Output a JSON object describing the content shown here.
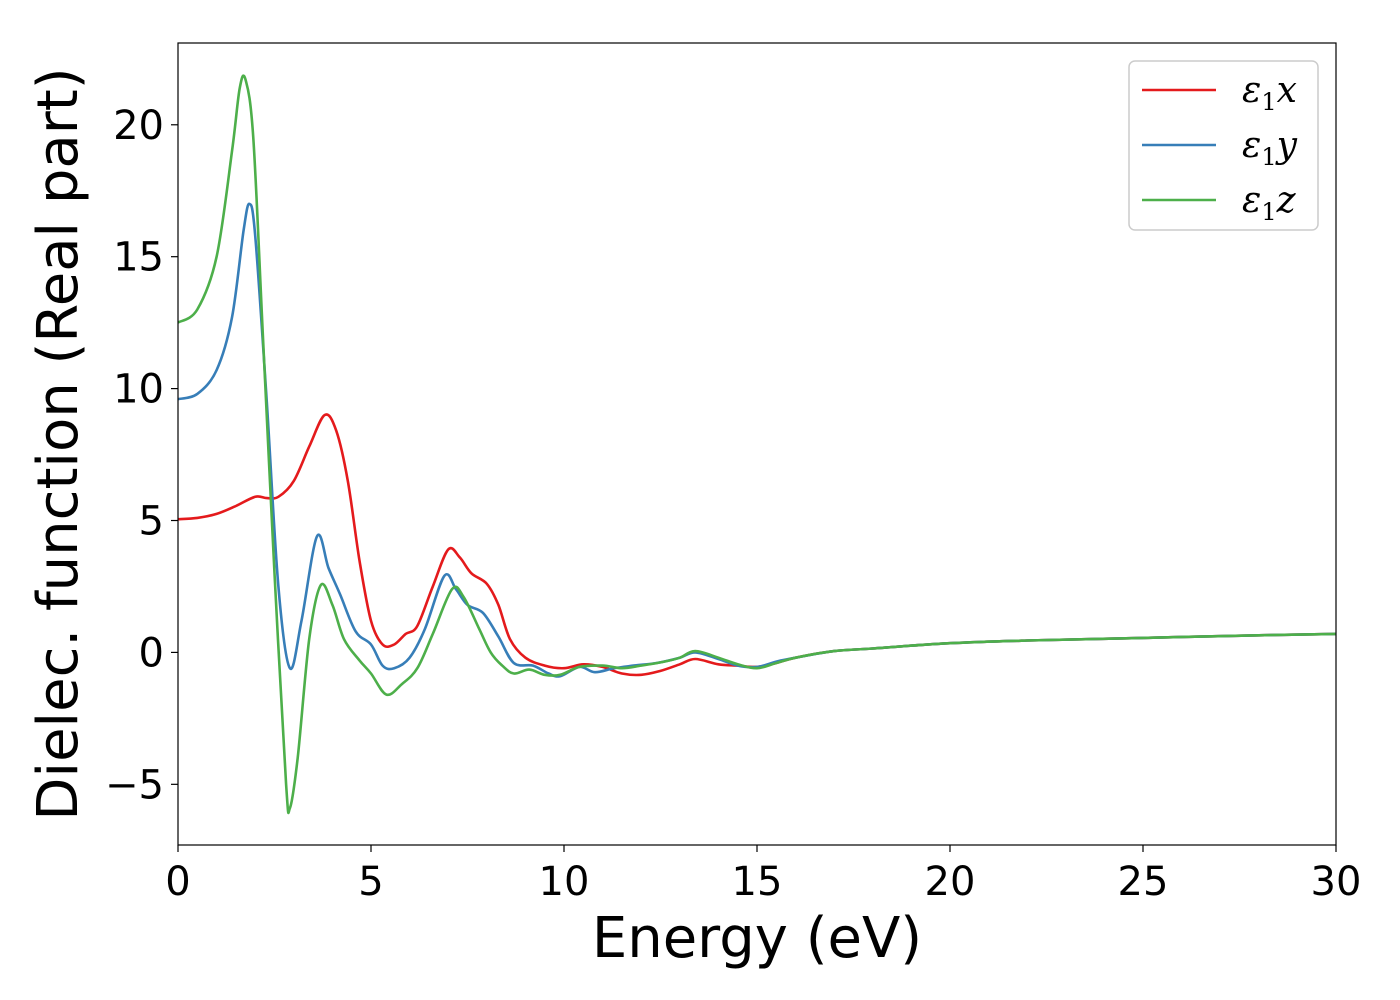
{
  "chart_data": {
    "type": "line",
    "title": "",
    "xlabel": "Energy (eV)",
    "ylabel": "Dielec. function (Real part)",
    "xlim": [
      0,
      30
    ],
    "ylim": [
      -7.3,
      23.1
    ],
    "xticks": [
      0,
      5,
      10,
      15,
      20,
      25,
      30
    ],
    "yticks": [
      -5,
      0,
      5,
      10,
      15,
      20
    ],
    "xtick_labels": [
      "0",
      "5",
      "10",
      "15",
      "20",
      "25",
      "30"
    ],
    "ytick_labels": [
      "−5",
      "0",
      "5",
      "10",
      "15",
      "20"
    ],
    "grid": false,
    "legend_position": "top-right",
    "series": [
      {
        "name": "ε₁x",
        "legend_base": "ε",
        "legend_sub": "1",
        "legend_var": "x",
        "color": "#e41a1c",
        "points": [
          [
            0,
            5.05
          ],
          [
            0.5,
            5.1
          ],
          [
            1.0,
            5.25
          ],
          [
            1.5,
            5.55
          ],
          [
            2.0,
            5.9
          ],
          [
            2.3,
            5.85
          ],
          [
            2.6,
            5.9
          ],
          [
            3.0,
            6.5
          ],
          [
            3.4,
            7.8
          ],
          [
            3.8,
            9.0
          ],
          [
            4.1,
            8.4
          ],
          [
            4.4,
            6.5
          ],
          [
            4.7,
            3.5
          ],
          [
            5.0,
            1.2
          ],
          [
            5.3,
            0.3
          ],
          [
            5.6,
            0.3
          ],
          [
            5.9,
            0.7
          ],
          [
            6.2,
            1.0
          ],
          [
            6.6,
            2.5
          ],
          [
            7.0,
            3.9
          ],
          [
            7.3,
            3.6
          ],
          [
            7.6,
            3.0
          ],
          [
            8.0,
            2.6
          ],
          [
            8.3,
            1.8
          ],
          [
            8.6,
            0.5
          ],
          [
            9.0,
            -0.2
          ],
          [
            9.5,
            -0.5
          ],
          [
            10.0,
            -0.6
          ],
          [
            10.5,
            -0.45
          ],
          [
            11.0,
            -0.55
          ],
          [
            11.5,
            -0.8
          ],
          [
            12.0,
            -0.85
          ],
          [
            12.5,
            -0.7
          ],
          [
            13.0,
            -0.45
          ],
          [
            13.4,
            -0.25
          ],
          [
            14.0,
            -0.45
          ],
          [
            14.5,
            -0.5
          ],
          [
            15.0,
            -0.55
          ],
          [
            15.5,
            -0.4
          ],
          [
            16.0,
            -0.2
          ],
          [
            17.0,
            0.05
          ],
          [
            18.0,
            0.15
          ],
          [
            20.0,
            0.35
          ],
          [
            22.0,
            0.45
          ],
          [
            25.0,
            0.55
          ],
          [
            28.0,
            0.65
          ],
          [
            30.0,
            0.7
          ]
        ]
      },
      {
        "name": "ε₁y",
        "legend_base": "ε",
        "legend_sub": "1",
        "legend_var": "y",
        "color": "#377eb8",
        "points": [
          [
            0,
            9.6
          ],
          [
            0.5,
            9.8
          ],
          [
            1.0,
            10.7
          ],
          [
            1.4,
            12.7
          ],
          [
            1.7,
            16.0
          ],
          [
            1.85,
            17.0
          ],
          [
            2.0,
            15.8
          ],
          [
            2.3,
            9.5
          ],
          [
            2.6,
            2.5
          ],
          [
            2.9,
            -0.6
          ],
          [
            3.2,
            1.2
          ],
          [
            3.6,
            4.4
          ],
          [
            3.9,
            3.2
          ],
          [
            4.2,
            2.2
          ],
          [
            4.6,
            0.8
          ],
          [
            5.0,
            0.3
          ],
          [
            5.3,
            -0.5
          ],
          [
            5.6,
            -0.6
          ],
          [
            6.0,
            -0.2
          ],
          [
            6.4,
            0.9
          ],
          [
            6.9,
            2.9
          ],
          [
            7.2,
            2.4
          ],
          [
            7.5,
            1.8
          ],
          [
            7.9,
            1.5
          ],
          [
            8.3,
            0.6
          ],
          [
            8.7,
            -0.4
          ],
          [
            9.2,
            -0.5
          ],
          [
            9.6,
            -0.8
          ],
          [
            9.9,
            -0.9
          ],
          [
            10.4,
            -0.55
          ],
          [
            10.8,
            -0.75
          ],
          [
            11.3,
            -0.6
          ],
          [
            11.8,
            -0.5
          ],
          [
            12.4,
            -0.4
          ],
          [
            13.0,
            -0.2
          ],
          [
            13.4,
            0.0
          ],
          [
            14.0,
            -0.25
          ],
          [
            14.5,
            -0.5
          ],
          [
            15.0,
            -0.55
          ],
          [
            15.5,
            -0.35
          ],
          [
            16.0,
            -0.2
          ],
          [
            17.0,
            0.05
          ],
          [
            18.0,
            0.15
          ],
          [
            20.0,
            0.35
          ],
          [
            22.0,
            0.45
          ],
          [
            25.0,
            0.55
          ],
          [
            28.0,
            0.65
          ],
          [
            30.0,
            0.7
          ]
        ]
      },
      {
        "name": "ε₁z",
        "legend_base": "ε",
        "legend_sub": "1",
        "legend_var": "z",
        "color": "#4daf4a",
        "points": [
          [
            0,
            12.5
          ],
          [
            0.5,
            13.0
          ],
          [
            1.0,
            15.0
          ],
          [
            1.4,
            19.0
          ],
          [
            1.6,
            21.4
          ],
          [
            1.75,
            21.7
          ],
          [
            1.95,
            19.5
          ],
          [
            2.2,
            12.0
          ],
          [
            2.5,
            3.0
          ],
          [
            2.8,
            -5.0
          ],
          [
            2.9,
            -5.9
          ],
          [
            3.1,
            -4.0
          ],
          [
            3.4,
            0.5
          ],
          [
            3.7,
            2.55
          ],
          [
            4.0,
            1.8
          ],
          [
            4.3,
            0.5
          ],
          [
            4.7,
            -0.3
          ],
          [
            5.0,
            -0.8
          ],
          [
            5.4,
            -1.6
          ],
          [
            5.8,
            -1.2
          ],
          [
            6.2,
            -0.6
          ],
          [
            6.6,
            0.7
          ],
          [
            7.1,
            2.4
          ],
          [
            7.4,
            2.1
          ],
          [
            7.8,
            0.9
          ],
          [
            8.1,
            0.0
          ],
          [
            8.4,
            -0.5
          ],
          [
            8.7,
            -0.8
          ],
          [
            9.1,
            -0.65
          ],
          [
            9.5,
            -0.85
          ],
          [
            9.9,
            -0.85
          ],
          [
            10.4,
            -0.55
          ],
          [
            11.0,
            -0.5
          ],
          [
            11.5,
            -0.6
          ],
          [
            12.0,
            -0.5
          ],
          [
            12.6,
            -0.35
          ],
          [
            13.0,
            -0.2
          ],
          [
            13.4,
            0.05
          ],
          [
            14.0,
            -0.2
          ],
          [
            14.5,
            -0.45
          ],
          [
            15.0,
            -0.6
          ],
          [
            15.5,
            -0.4
          ],
          [
            16.0,
            -0.2
          ],
          [
            17.0,
            0.05
          ],
          [
            18.0,
            0.15
          ],
          [
            20.0,
            0.35
          ],
          [
            22.0,
            0.45
          ],
          [
            25.0,
            0.55
          ],
          [
            28.0,
            0.65
          ],
          [
            30.0,
            0.7
          ]
        ]
      }
    ]
  }
}
